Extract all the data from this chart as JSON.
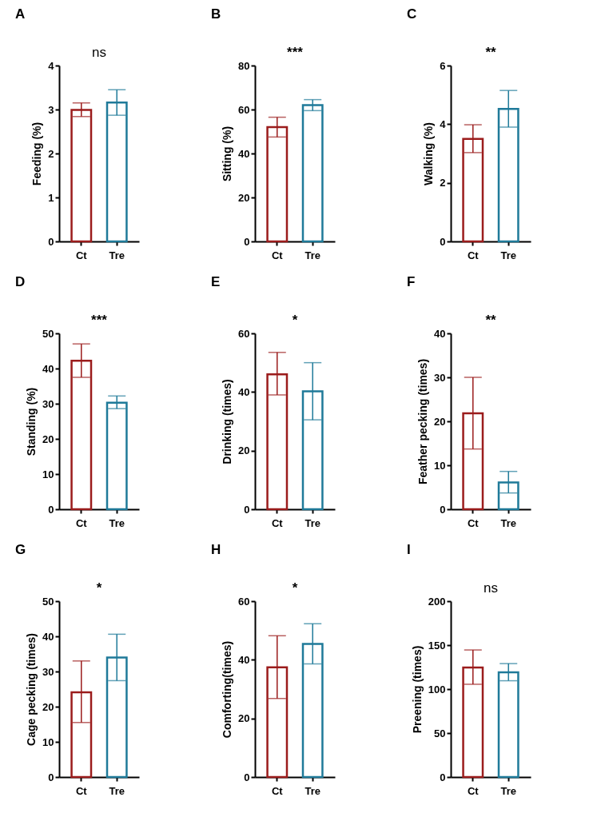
{
  "chart_data": [
    {
      "type": "bar",
      "title": "A",
      "ylabel": "Feeding (%)",
      "categories": [
        "Ct",
        "Tre"
      ],
      "values": [
        2.99,
        3.16
      ],
      "errors": [
        [
          2.84,
          3.15
        ],
        [
          2.87,
          3.45
        ]
      ],
      "colors": [
        "#9b1c1c",
        "#1f7a99"
      ],
      "ylim": [
        0,
        4
      ],
      "yticks": [
        0,
        1,
        2,
        3,
        4
      ],
      "annotations": [
        "ns"
      ]
    },
    {
      "type": "bar",
      "title": "B",
      "ylabel": "Sitting (%)",
      "categories": [
        "Ct",
        "Tre"
      ],
      "values": [
        52,
        62
      ],
      "errors": [
        [
          47.5,
          56.5
        ],
        [
          59.5,
          64.5
        ]
      ],
      "colors": [
        "#9b1c1c",
        "#1f7a99"
      ],
      "ylim": [
        0,
        80
      ],
      "yticks": [
        0,
        20,
        40,
        60,
        80
      ],
      "annotations": [
        "***"
      ]
    },
    {
      "type": "bar",
      "title": "C",
      "ylabel": "Walking (%)",
      "categories": [
        "Ct",
        "Tre"
      ],
      "values": [
        3.5,
        4.52
      ],
      "errors": [
        [
          3.03,
          3.98
        ],
        [
          3.9,
          5.15
        ]
      ],
      "colors": [
        "#9b1c1c",
        "#1f7a99"
      ],
      "ylim": [
        0,
        6
      ],
      "yticks": [
        0,
        2,
        4,
        6
      ],
      "annotations": [
        "**"
      ]
    },
    {
      "type": "bar",
      "title": "D",
      "ylabel": "Standing (%)",
      "categories": [
        "Ct",
        "Tre"
      ],
      "values": [
        42.2,
        30.3
      ],
      "errors": [
        [
          37.5,
          47
        ],
        [
          28.6,
          32.2
        ]
      ],
      "colors": [
        "#9b1c1c",
        "#1f7a99"
      ],
      "ylim": [
        0,
        50
      ],
      "yticks": [
        0,
        10,
        20,
        30,
        40,
        50
      ],
      "annotations": [
        "***"
      ]
    },
    {
      "type": "bar",
      "title": "E",
      "ylabel": "Drinking (times)",
      "categories": [
        "Ct",
        "Tre"
      ],
      "values": [
        46,
        40.2
      ],
      "errors": [
        [
          39,
          53.5
        ],
        [
          30.5,
          50
        ]
      ],
      "colors": [
        "#9b1c1c",
        "#1f7a99"
      ],
      "ylim": [
        0,
        60
      ],
      "yticks": [
        0,
        20,
        40,
        60
      ],
      "annotations": [
        "*"
      ]
    },
    {
      "type": "bar",
      "title": "F",
      "ylabel": "Feather pecking (times)",
      "categories": [
        "Ct",
        "Tre"
      ],
      "values": [
        21.8,
        6.1
      ],
      "errors": [
        [
          13.7,
          30
        ],
        [
          3.7,
          8.6
        ]
      ],
      "colors": [
        "#9b1c1c",
        "#1f7a99"
      ],
      "ylim": [
        0,
        40
      ],
      "yticks": [
        0,
        10,
        20,
        30,
        40
      ],
      "annotations": [
        "**"
      ]
    },
    {
      "type": "bar",
      "title": "G",
      "ylabel": "Cage pecking (times)",
      "categories": [
        "Ct",
        "Tre"
      ],
      "values": [
        24.1,
        34
      ],
      "errors": [
        [
          15.5,
          33
        ],
        [
          27.4,
          40.6
        ]
      ],
      "colors": [
        "#9b1c1c",
        "#1f7a99"
      ],
      "ylim": [
        0,
        50
      ],
      "yticks": [
        0,
        10,
        20,
        30,
        40,
        50
      ],
      "annotations": [
        "*"
      ]
    },
    {
      "type": "bar",
      "title": "H",
      "ylabel": "Comforting(times)",
      "categories": [
        "Ct",
        "Tre"
      ],
      "values": [
        37.4,
        45.4
      ],
      "errors": [
        [
          26.8,
          48.2
        ],
        [
          38.6,
          52.3
        ]
      ],
      "colors": [
        "#9b1c1c",
        "#1f7a99"
      ],
      "ylim": [
        0,
        60
      ],
      "yticks": [
        0,
        20,
        40,
        60
      ],
      "annotations": [
        "*"
      ]
    },
    {
      "type": "bar",
      "title": "I",
      "ylabel": "Preening (times)",
      "categories": [
        "Ct",
        "Tre"
      ],
      "values": [
        124.5,
        119
      ],
      "errors": [
        [
          105.5,
          144.5
        ],
        [
          109.5,
          129
        ]
      ],
      "colors": [
        "#9b1c1c",
        "#1f7a99"
      ],
      "ylim": [
        0,
        200
      ],
      "yticks": [
        0,
        50,
        100,
        150,
        200
      ],
      "annotations": [
        "ns"
      ]
    }
  ]
}
